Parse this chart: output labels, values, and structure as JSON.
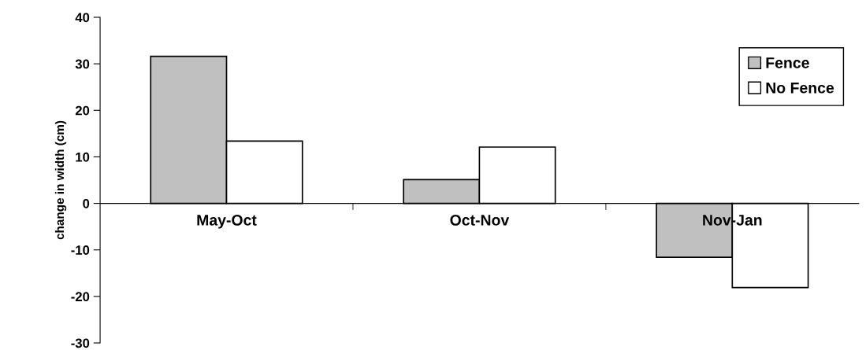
{
  "chart_data": {
    "type": "bar",
    "ylabel": "change in width (cm)",
    "categories": [
      "May-Oct",
      "Oct-Nov",
      "Nov-Jan"
    ],
    "series": [
      {
        "name": "Fence",
        "color": "#c0c0c0",
        "values": [
          31.6,
          5.1,
          -11.6
        ]
      },
      {
        "name": "No Fence",
        "color": "#ffffff",
        "values": [
          13.4,
          12.1,
          -18.1
        ]
      }
    ],
    "ylim": [
      -30,
      40
    ],
    "yticks": [
      -30,
      -20,
      -10,
      0,
      10,
      20,
      30,
      40
    ],
    "grid": false,
    "legend": "top right"
  }
}
